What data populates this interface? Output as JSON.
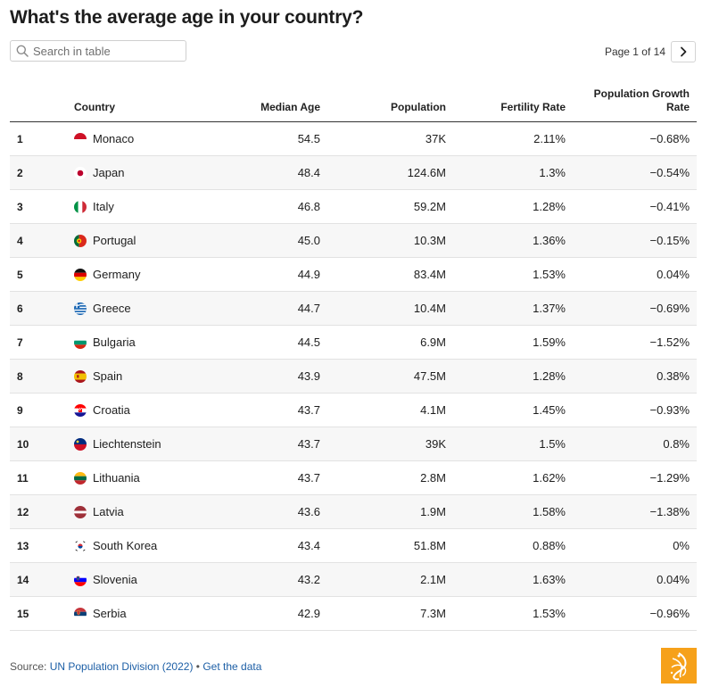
{
  "title": "What's the average age in your country?",
  "search": {
    "placeholder": "Search in table",
    "icon": "search-icon"
  },
  "pager": {
    "label": "Page 1 of 14",
    "next_icon": "chevron-right-icon"
  },
  "chart_data": {
    "type": "table",
    "columns": [
      "",
      "Country",
      "Median Age",
      "Population",
      "Fertility Rate",
      "Population Growth Rate"
    ],
    "rows": [
      {
        "rank": "1",
        "country": "Monaco",
        "flag": "monaco-flag",
        "median_age": "54.5",
        "population": "37K",
        "fertility": "2.11%",
        "growth": "−0.68%"
      },
      {
        "rank": "2",
        "country": "Japan",
        "flag": "japan-flag",
        "median_age": "48.4",
        "population": "124.6M",
        "fertility": "1.3%",
        "growth": "−0.54%"
      },
      {
        "rank": "3",
        "country": "Italy",
        "flag": "italy-flag",
        "median_age": "46.8",
        "population": "59.2M",
        "fertility": "1.28%",
        "growth": "−0.41%"
      },
      {
        "rank": "4",
        "country": "Portugal",
        "flag": "portugal-flag",
        "median_age": "45.0",
        "population": "10.3M",
        "fertility": "1.36%",
        "growth": "−0.15%"
      },
      {
        "rank": "5",
        "country": "Germany",
        "flag": "germany-flag",
        "median_age": "44.9",
        "population": "83.4M",
        "fertility": "1.53%",
        "growth": "0.04%"
      },
      {
        "rank": "6",
        "country": "Greece",
        "flag": "greece-flag",
        "median_age": "44.7",
        "population": "10.4M",
        "fertility": "1.37%",
        "growth": "−0.69%"
      },
      {
        "rank": "7",
        "country": "Bulgaria",
        "flag": "bulgaria-flag",
        "median_age": "44.5",
        "population": "6.9M",
        "fertility": "1.59%",
        "growth": "−1.52%"
      },
      {
        "rank": "8",
        "country": "Spain",
        "flag": "spain-flag",
        "median_age": "43.9",
        "population": "47.5M",
        "fertility": "1.28%",
        "growth": "0.38%"
      },
      {
        "rank": "9",
        "country": "Croatia",
        "flag": "croatia-flag",
        "median_age": "43.7",
        "population": "4.1M",
        "fertility": "1.45%",
        "growth": "−0.93%"
      },
      {
        "rank": "10",
        "country": "Liechtenstein",
        "flag": "liechtenstein-flag",
        "median_age": "43.7",
        "population": "39K",
        "fertility": "1.5%",
        "growth": "0.8%"
      },
      {
        "rank": "11",
        "country": "Lithuania",
        "flag": "lithuania-flag",
        "median_age": "43.7",
        "population": "2.8M",
        "fertility": "1.62%",
        "growth": "−1.29%"
      },
      {
        "rank": "12",
        "country": "Latvia",
        "flag": "latvia-flag",
        "median_age": "43.6",
        "population": "1.9M",
        "fertility": "1.58%",
        "growth": "−1.38%"
      },
      {
        "rank": "13",
        "country": "South Korea",
        "flag": "south-korea-flag",
        "median_age": "43.4",
        "population": "51.8M",
        "fertility": "0.88%",
        "growth": "0%"
      },
      {
        "rank": "14",
        "country": "Slovenia",
        "flag": "slovenia-flag",
        "median_age": "43.2",
        "population": "2.1M",
        "fertility": "1.63%",
        "growth": "0.04%"
      },
      {
        "rank": "15",
        "country": "Serbia",
        "flag": "serbia-flag",
        "median_age": "42.9",
        "population": "7.3M",
        "fertility": "1.53%",
        "growth": "−0.96%"
      }
    ]
  },
  "footer": {
    "source_prefix": "Source: ",
    "source_link": "UN Population Division (2022)",
    "separator": " • ",
    "data_link": "Get the data",
    "link_color": "#1d5fa6",
    "logo": "al-jazeera-logo-icon",
    "logo_color": "#f6a11a"
  }
}
